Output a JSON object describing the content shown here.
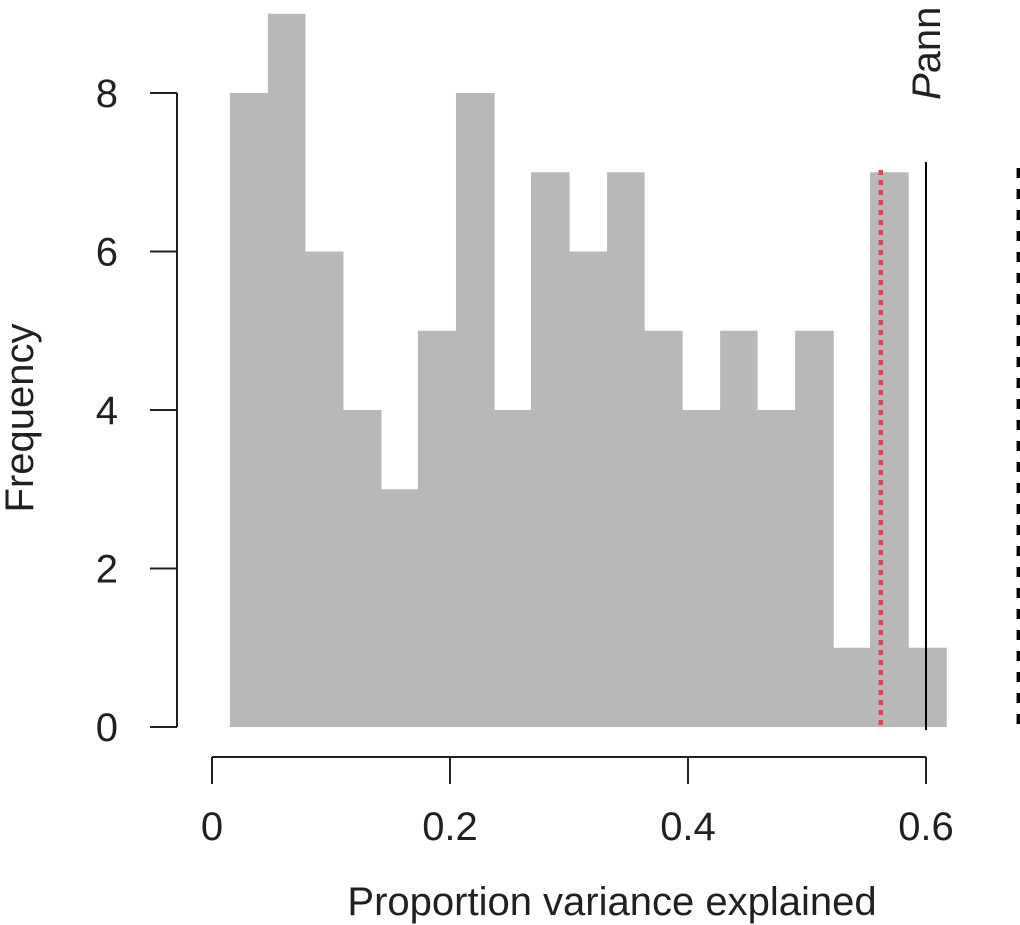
{
  "chart_data": {
    "type": "bar",
    "subtype": "histogram",
    "xlabel": "Proportion variance explained",
    "ylabel": "Frequency",
    "xlim": [
      0,
      0.6
    ],
    "ylim": [
      0,
      8
    ],
    "x_ticks": [
      "0",
      "0.2",
      "0.4",
      "0.6"
    ],
    "y_ticks": [
      "0",
      "2",
      "4",
      "6",
      "8"
    ],
    "bar_color": "#b8b8b8",
    "bin_edges": [
      0.015,
      0.047,
      0.078,
      0.11,
      0.142,
      0.173,
      0.205,
      0.237,
      0.268,
      0.3,
      0.332,
      0.363,
      0.395,
      0.427,
      0.458,
      0.49,
      0.522,
      0.553,
      0.585,
      0.617
    ],
    "values": [
      8,
      9,
      6,
      4,
      3,
      5,
      8,
      4,
      7,
      6,
      7,
      5,
      4,
      5,
      4,
      5,
      1,
      7,
      1
    ],
    "reference_lines": [
      {
        "x": 0.562,
        "style": "dotted",
        "color": "#d6485f"
      },
      {
        "x": 0.6,
        "style": "solid",
        "color": "#000000",
        "label_italic": "P",
        "label_rest": "ann"
      },
      {
        "x": 0.678,
        "style": "dashed",
        "color": "#000000"
      }
    ],
    "grid": false,
    "legend": "none"
  }
}
